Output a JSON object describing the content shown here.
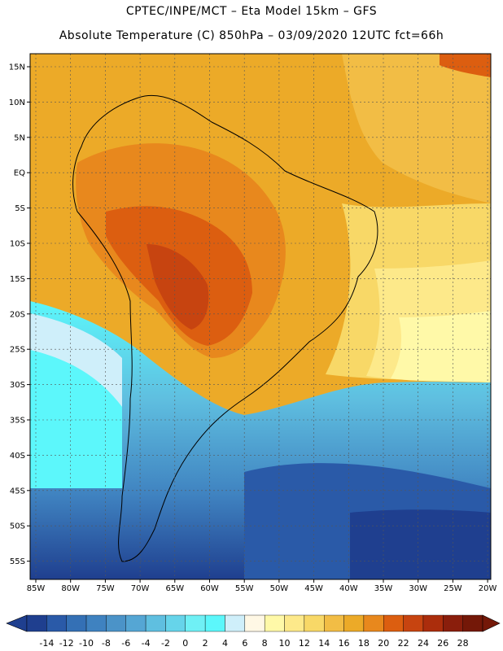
{
  "header": {
    "line1": "CPTEC/INPE/MCT –  Eta Model 15km – GFS",
    "line2": "Absolute Temperature (C) 850hPa – 03/09/2020 12UTC fct=66h"
  },
  "map": {
    "lat_labels": [
      "15N",
      "10N",
      "5N",
      "EQ",
      "5S",
      "10S",
      "15S",
      "20S",
      "25S",
      "30S",
      "35S",
      "40S",
      "45S",
      "50S",
      "55S"
    ],
    "lon_labels": [
      "85W",
      "80W",
      "75W",
      "70W",
      "65W",
      "60W",
      "55W",
      "50W",
      "45W",
      "40W",
      "35W",
      "30W",
      "25W",
      "20W"
    ]
  },
  "colorbar": {
    "labels": [
      "-14",
      "-12",
      "-10",
      "-8",
      "-6",
      "-4",
      "-2",
      "0",
      "2",
      "4",
      "6",
      "8",
      "10",
      "12",
      "14",
      "16",
      "18",
      "20",
      "22",
      "24",
      "26",
      "28"
    ],
    "colors": [
      "#1f3f8f",
      "#2a5aa8",
      "#3470b5",
      "#3f82c0",
      "#4b93c8",
      "#55a6d4",
      "#5fbfe0",
      "#66d4ea",
      "#6ff0f5",
      "#5cf7fb",
      "#cfeffa",
      "#fff8e5",
      "#fff9a8",
      "#fde98a",
      "#f8d867",
      "#f2bd45",
      "#ecaa28",
      "#e8881d",
      "#dc5e10",
      "#c74410",
      "#ab2d0c",
      "#8a1e0c",
      "#741808"
    ]
  }
}
